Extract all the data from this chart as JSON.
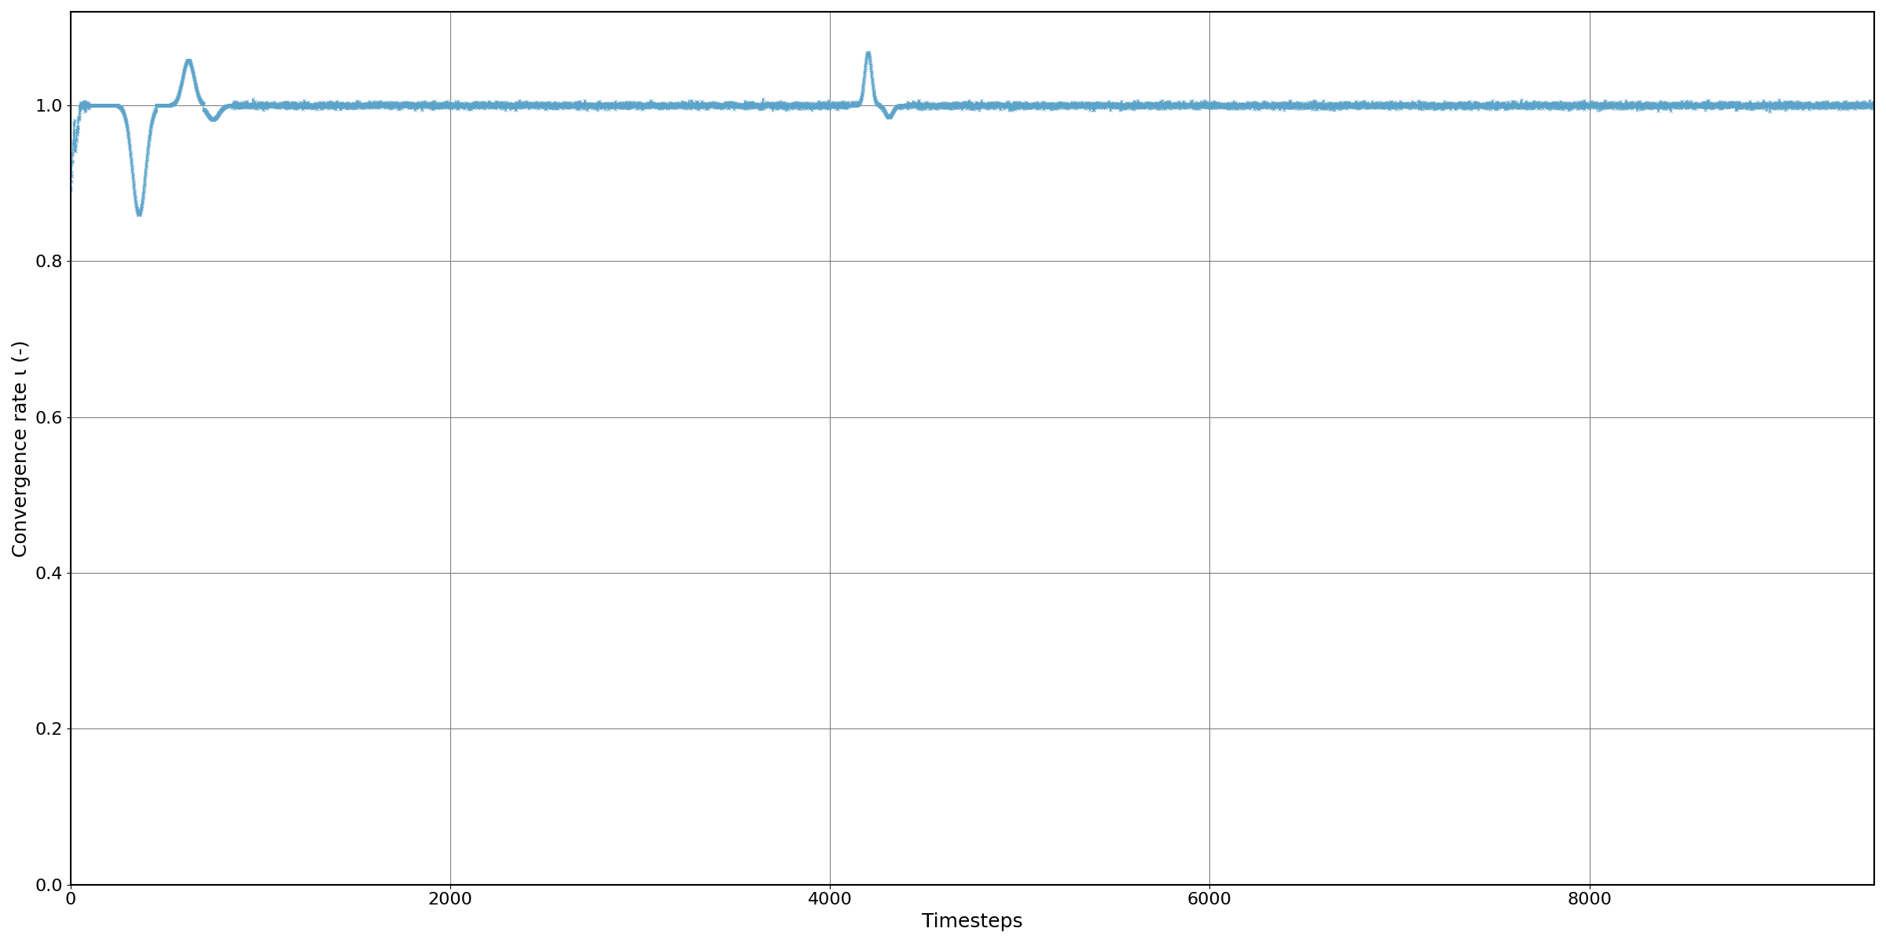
{
  "xlabel": "Timesteps",
  "ylabel": "Convergence rate ι (-)",
  "line_color": "#5ba3c9",
  "xlim": [
    0,
    9500
  ],
  "ylim": [
    0.0,
    1.12
  ],
  "yticks": [
    0.0,
    0.2,
    0.4,
    0.6,
    0.8,
    1.0
  ],
  "xticks": [
    0,
    2000,
    4000,
    6000,
    8000
  ],
  "marker": "x",
  "markersize": 3,
  "linewidth": 1.0,
  "figsize": [
    24.0,
    12.0
  ],
  "dpi": 100,
  "n_timesteps": 9500,
  "grid_color": "#808080",
  "grid_linewidth": 0.8
}
